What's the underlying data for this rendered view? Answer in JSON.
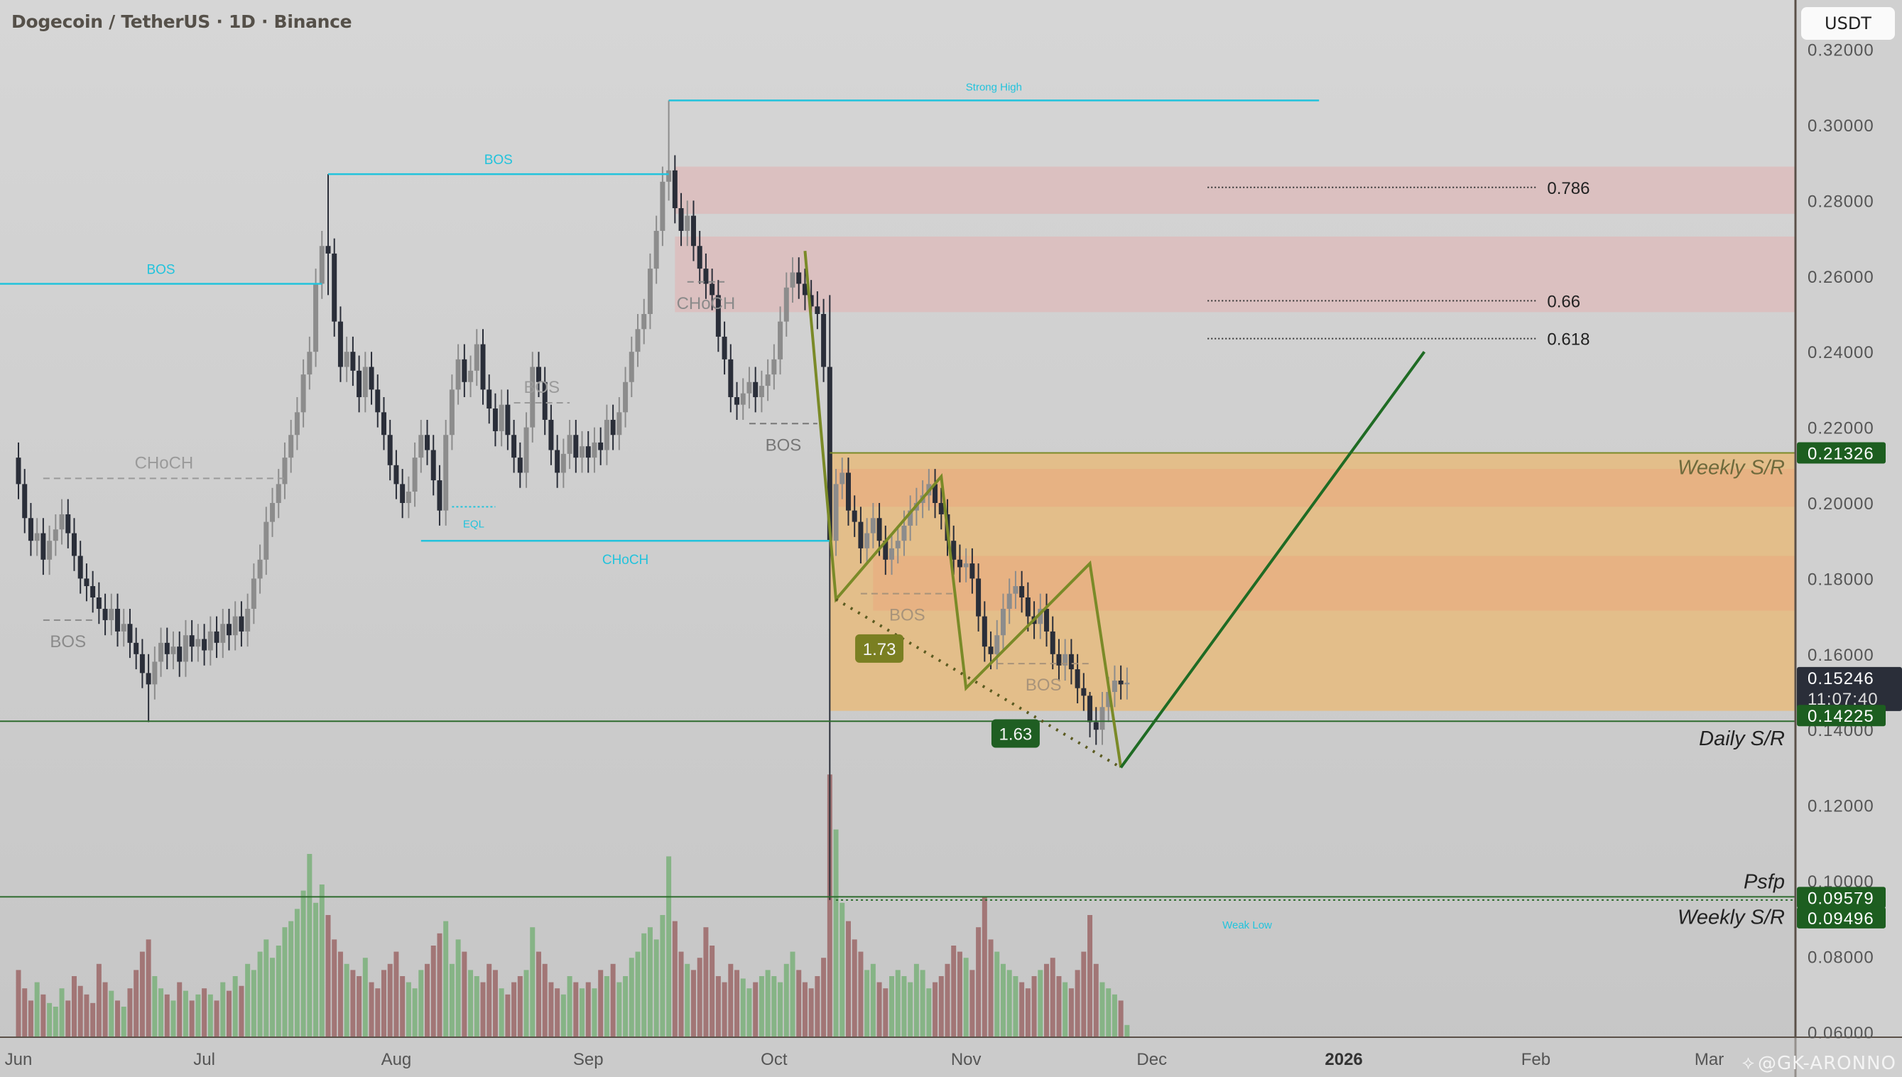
{
  "header": {
    "title": "Dogecoin / TetherUS · 1D · Binance",
    "currency_button": "USDT"
  },
  "watermark": {
    "icon": "tradingview-logo-icon",
    "text": "@GK-ARONNO"
  },
  "colors": {
    "background": "#d3d3d3",
    "up_candle": "#8c8c8c",
    "down_candle": "#2a2e39",
    "volume_up": "#86b486",
    "volume_down": "#a27676",
    "structure": "#22c3dc",
    "supply_zone": "#dbbfbf",
    "demand_zone": "#e4bd86",
    "demand_band": "#e8ae80",
    "pattern": "#7a8a28",
    "projection": "#1f6b24",
    "sr_line": "#2e6b2e"
  },
  "chart_data": {
    "type": "candlestick",
    "symbol": "Dogecoin / TetherUS",
    "interval": "1D",
    "exchange": "Binance",
    "start_date": "2025-06-01",
    "ylim": [
      0.058,
      0.325
    ],
    "y_ticks": [
      "0.06000",
      "0.08000",
      "0.10000",
      "0.12000",
      "0.14000",
      "0.16000",
      "0.18000",
      "0.20000",
      "0.22000",
      "0.24000",
      "0.26000",
      "0.28000",
      "0.30000",
      "0.32000"
    ],
    "x_ticks": [
      {
        "label": "Jun",
        "date": "2025-06-01",
        "bold": false
      },
      {
        "label": "Jul",
        "date": "2025-07-01",
        "bold": false
      },
      {
        "label": "Aug",
        "date": "2025-08-01",
        "bold": false
      },
      {
        "label": "Sep",
        "date": "2025-09-01",
        "bold": false
      },
      {
        "label": "Oct",
        "date": "2025-10-01",
        "bold": false
      },
      {
        "label": "Nov",
        "date": "2025-11-01",
        "bold": false
      },
      {
        "label": "Dec",
        "date": "2025-12-01",
        "bold": false
      },
      {
        "label": "2026",
        "date": "2026-01-01",
        "bold": true
      },
      {
        "label": "Feb",
        "date": "2026-02-01",
        "bold": false
      },
      {
        "label": "Mar",
        "date": "2026-03-01",
        "bold": false
      }
    ],
    "closes": [
      0.205,
      0.196,
      0.19,
      0.192,
      0.185,
      0.19,
      0.193,
      0.197,
      0.192,
      0.186,
      0.18,
      0.178,
      0.175,
      0.172,
      0.169,
      0.172,
      0.166,
      0.168,
      0.163,
      0.16,
      0.155,
      0.152,
      0.158,
      0.163,
      0.16,
      0.162,
      0.158,
      0.165,
      0.162,
      0.164,
      0.161,
      0.166,
      0.163,
      0.168,
      0.165,
      0.17,
      0.166,
      0.172,
      0.18,
      0.185,
      0.195,
      0.2,
      0.205,
      0.212,
      0.218,
      0.224,
      0.234,
      0.24,
      0.258,
      0.268,
      0.266,
      0.248,
      0.236,
      0.24,
      0.235,
      0.228,
      0.236,
      0.23,
      0.224,
      0.218,
      0.21,
      0.205,
      0.2,
      0.203,
      0.212,
      0.218,
      0.214,
      0.206,
      0.198,
      0.218,
      0.23,
      0.238,
      0.232,
      0.235,
      0.242,
      0.23,
      0.225,
      0.219,
      0.226,
      0.218,
      0.212,
      0.208,
      0.22,
      0.236,
      0.232,
      0.222,
      0.214,
      0.208,
      0.213,
      0.218,
      0.212,
      0.215,
      0.212,
      0.216,
      0.214,
      0.222,
      0.218,
      0.224,
      0.232,
      0.24,
      0.246,
      0.25,
      0.262,
      0.272,
      0.285,
      0.288,
      0.278,
      0.272,
      0.276,
      0.268,
      0.262,
      0.258,
      0.255,
      0.244,
      0.238,
      0.228,
      0.226,
      0.229,
      0.232,
      0.228,
      0.231,
      0.234,
      0.238,
      0.248,
      0.257,
      0.261,
      0.258,
      0.255,
      0.252,
      0.25,
      0.236,
      0.19,
      0.205,
      0.208,
      0.198,
      0.195,
      0.188,
      0.192,
      0.196,
      0.19,
      0.185,
      0.188,
      0.19,
      0.194,
      0.198,
      0.2,
      0.202,
      0.205,
      0.2,
      0.197,
      0.19,
      0.185,
      0.183,
      0.184,
      0.18,
      0.17,
      0.162,
      0.16,
      0.165,
      0.172,
      0.176,
      0.178,
      0.175,
      0.17,
      0.168,
      0.172,
      0.166,
      0.16,
      0.157,
      0.16,
      0.156,
      0.151,
      0.149,
      0.142,
      0.14,
      0.146,
      0.15,
      0.153,
      0.152,
      0.15246
    ],
    "notable_wicks": [
      {
        "date": "2025-06-22",
        "high": 0.16,
        "low": 0.142
      },
      {
        "date": "2025-07-21",
        "high": 0.287,
        "low": 0.255
      },
      {
        "date": "2025-09-14",
        "high": 0.3065,
        "low": 0.28
      },
      {
        "date": "2025-10-10",
        "high": 0.255,
        "low": 0.09496
      },
      {
        "date": "2025-11-21",
        "high": 0.15,
        "low": 0.138
      }
    ],
    "volume": [
      55,
      40,
      30,
      45,
      35,
      28,
      25,
      40,
      30,
      50,
      42,
      35,
      28,
      60,
      45,
      38,
      30,
      25,
      40,
      55,
      70,
      80,
      50,
      40,
      35,
      30,
      45,
      38,
      30,
      35,
      40,
      35,
      30,
      45,
      38,
      50,
      42,
      60,
      55,
      70,
      80,
      65,
      75,
      90,
      95,
      105,
      120,
      150,
      110,
      125,
      100,
      80,
      70,
      60,
      55,
      50,
      65,
      45,
      40,
      55,
      60,
      70,
      50,
      45,
      40,
      55,
      60,
      75,
      85,
      95,
      60,
      80,
      70,
      55,
      50,
      45,
      60,
      55,
      40,
      35,
      45,
      50,
      55,
      90,
      70,
      60,
      45,
      40,
      35,
      50,
      45,
      40,
      45,
      40,
      55,
      50,
      60,
      45,
      50,
      65,
      70,
      85,
      90,
      80,
      100,
      148,
      95,
      70,
      60,
      55,
      65,
      90,
      75,
      50,
      45,
      60,
      55,
      48,
      40,
      45,
      50,
      55,
      50,
      45,
      60,
      70,
      55,
      45,
      40,
      50,
      65,
      215,
      170,
      110,
      95,
      80,
      70,
      55,
      60,
      45,
      40,
      50,
      55,
      50,
      45,
      60,
      55,
      40,
      45,
      50,
      60,
      75,
      70,
      65,
      55,
      90,
      115,
      80,
      70,
      60,
      55,
      50,
      45,
      40,
      50,
      55,
      60,
      65,
      50,
      45,
      40,
      55,
      70,
      100,
      60,
      45,
      40,
      35,
      30,
      10
    ],
    "zones": [
      {
        "kind": "supply",
        "from": "2025-09-15",
        "low": 0.2765,
        "high": 0.289
      },
      {
        "kind": "supply",
        "from": "2025-09-15",
        "low": 0.2505,
        "high": 0.2705
      },
      {
        "kind": "demand",
        "from": "2025-10-10",
        "low": 0.145,
        "high": 0.21326
      },
      {
        "kind": "band",
        "from": "2025-10-11",
        "low": 0.199,
        "high": 0.209
      },
      {
        "kind": "band",
        "from": "2025-10-17",
        "low": 0.1715,
        "high": 0.186
      }
    ],
    "structure_lines": [
      {
        "label": "Strong High",
        "from": "2025-09-14",
        "to": "2025-12-28",
        "price": 0.3065,
        "style": "solid",
        "color": "#22c3dc",
        "size": "small"
      },
      {
        "label": "BOS",
        "from": "2025-07-21",
        "to": "2025-09-14",
        "price": 0.287,
        "style": "solid",
        "color": "#22c3dc",
        "size": "med"
      },
      {
        "label": "BOS",
        "from": "2025-05-29",
        "to": "2025-07-20",
        "price": 0.258,
        "style": "solid",
        "color": "#22c3dc",
        "size": "med"
      },
      {
        "label": "CHoCH",
        "from": "2025-08-05",
        "to": "2025-10-10",
        "price": 0.19,
        "style": "solid",
        "color": "#22c3dc",
        "size": "med",
        "below": true
      },
      {
        "label": "CHoCH",
        "from": "2025-06-05",
        "to": "2025-07-14",
        "price": 0.2065,
        "style": "dashed",
        "color": "#9a9a9a",
        "size": "big"
      },
      {
        "label": "BOS",
        "from": "2025-06-05",
        "to": "2025-06-13",
        "price": 0.169,
        "style": "dashed",
        "color": "#8a8a8a",
        "size": "big",
        "below": true
      },
      {
        "label": "EQL",
        "from": "2025-08-10",
        "to": "2025-08-17",
        "price": 0.199,
        "style": "dotted",
        "color": "#22c3dc",
        "size": "small",
        "below": true
      },
      {
        "label": "BOS",
        "from": "2025-08-20",
        "to": "2025-08-29",
        "price": 0.2265,
        "style": "dashed",
        "color": "#9a9a9a",
        "size": "big"
      },
      {
        "label": "CHoCH",
        "from": "2025-09-17",
        "to": "2025-09-23",
        "price": 0.2585,
        "style": "dashed",
        "color": "#8a8a8a",
        "size": "big",
        "below": true
      },
      {
        "label": "BOS",
        "from": "2025-09-27",
        "to": "2025-10-08",
        "price": 0.221,
        "style": "dashed",
        "color": "#777",
        "size": "big",
        "below": true
      },
      {
        "label": "BOS",
        "from": "2025-10-15",
        "to": "2025-10-30",
        "price": 0.176,
        "style": "dashed",
        "color": "#a8937a",
        "size": "big",
        "below": true
      },
      {
        "label": "BOS",
        "from": "2025-11-06",
        "to": "2025-11-21",
        "price": 0.1575,
        "style": "dashed",
        "color": "#a8937a",
        "size": "big",
        "below": true
      }
    ],
    "fib_levels": [
      {
        "label": "0.786",
        "price": 0.2835,
        "from": "2025-12-10",
        "to": "2026-02-01"
      },
      {
        "label": "0.66",
        "price": 0.2535,
        "from": "2025-12-10",
        "to": "2026-02-01"
      },
      {
        "label": "0.618",
        "price": 0.2435,
        "from": "2025-12-10",
        "to": "2026-02-01"
      }
    ],
    "sr_lines": [
      {
        "label": "Weekly S/R",
        "price": 0.21326,
        "color": "#7a8a28",
        "from": "2025-10-10"
      },
      {
        "label": "Daily S/R",
        "price": 0.14225,
        "color": "#2e6b2e"
      },
      {
        "label": "Weekly S/R",
        "price": 0.09579,
        "color": "#2e6b2e"
      }
    ],
    "weak_low": {
      "label": "Weak Low",
      "price": 0.09496,
      "from": "2025-10-11"
    },
    "psfp": {
      "label": "Psfp"
    },
    "pattern": [
      {
        "date": "2025-10-06",
        "price": 0.2667
      },
      {
        "date": "2025-10-11",
        "price": 0.1745
      },
      {
        "date": "2025-10-28",
        "price": 0.207
      },
      {
        "date": "2025-11-01",
        "price": 0.151
      },
      {
        "date": "2025-11-21",
        "price": 0.184
      },
      {
        "date": "2025-11-26",
        "price": 0.13
      }
    ],
    "projection": [
      {
        "date": "2025-11-26",
        "price": 0.13
      },
      {
        "date": "2026-01-14",
        "price": 0.24
      }
    ],
    "ratio_line": [
      {
        "date": "2025-10-11",
        "price": 0.1745
      },
      {
        "date": "2025-11-26",
        "price": 0.13
      }
    ],
    "ratios": [
      {
        "label": "1.73",
        "date": "2025-10-18",
        "price": 0.1615,
        "color": "#7a7f22"
      },
      {
        "label": "1.63",
        "date": "2025-11-09",
        "price": 0.139,
        "color": "#1f5e22"
      }
    ],
    "price_labels": [
      {
        "value": "0.21326",
        "price": 0.21326,
        "color": "#1d5e20"
      },
      {
        "value": "0.15246",
        "sub": "11:07:40",
        "price": 0.15246,
        "color": "#2a2e39"
      },
      {
        "value": "0.14225",
        "price": 0.14225,
        "color": "#1d5e20"
      },
      {
        "value": "0.09579",
        "price": 0.09579,
        "color": "#1d5e20"
      },
      {
        "value": "0.09496",
        "price": 0.09496,
        "color": "#1d5e20"
      }
    ]
  }
}
